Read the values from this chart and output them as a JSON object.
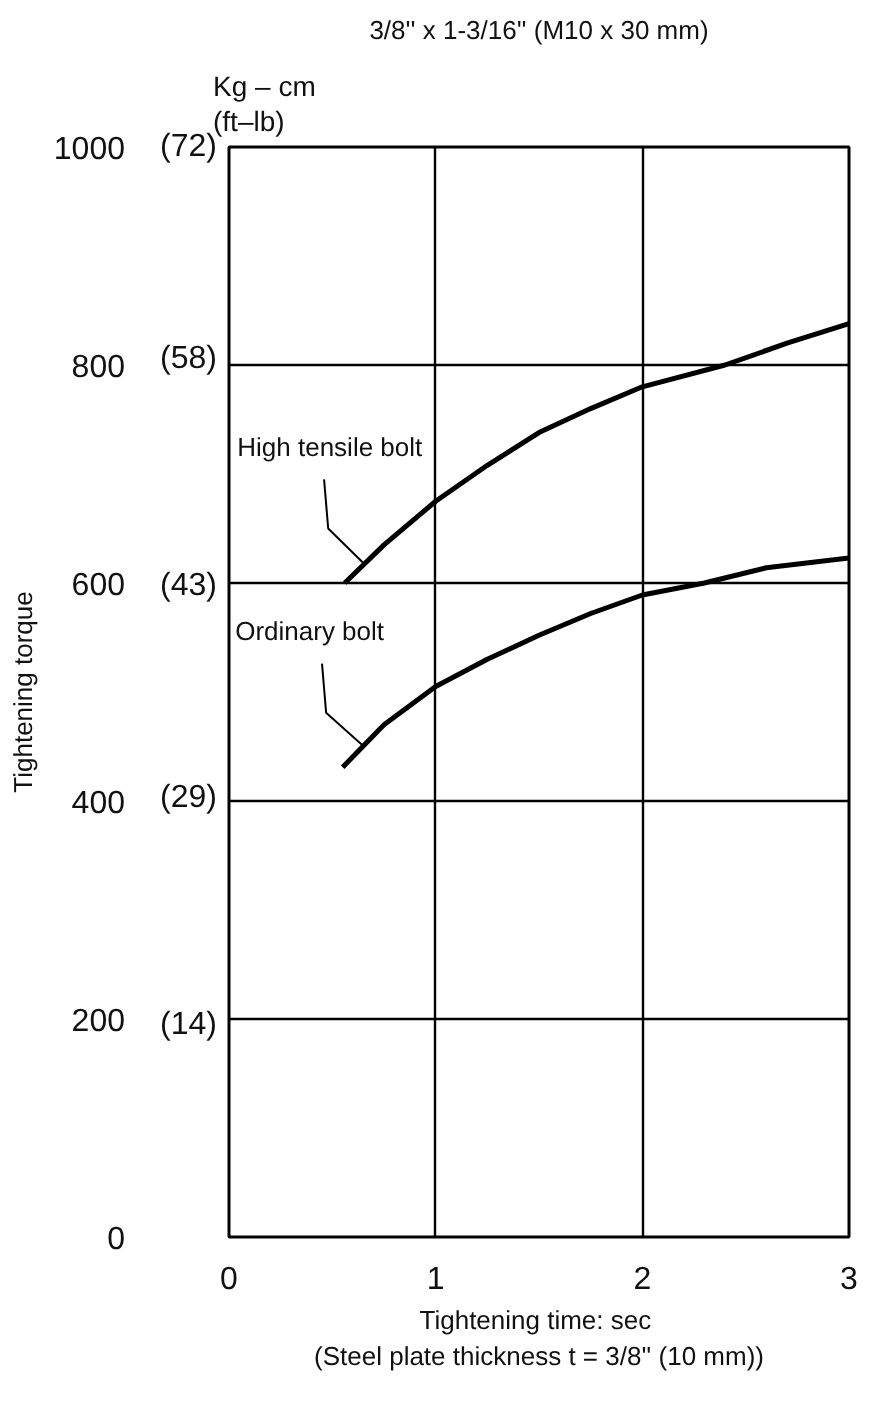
{
  "chart_data": {
    "type": "line",
    "title": "3/8'' x 1-3/16'' (M10 x 30 mm)",
    "xlabel": "Tightening time:  sec\n(Steel plate thickness t = 3/8'' (10 mm))",
    "ylabel": "Tightening torque",
    "annotations": [
      "Kg – cm\n(ft–lb)"
    ],
    "xlim": [
      0,
      3
    ],
    "ylim": [
      0,
      1000
    ],
    "xticks": [
      0,
      1,
      2,
      3
    ],
    "yticks": [
      0,
      200,
      400,
      600,
      800,
      1000
    ],
    "y2lim": [
      0,
      72
    ],
    "y2ticks": [
      {
        "value": 14,
        "label": "(14)"
      },
      {
        "value": 29,
        "label": "(29)"
      },
      {
        "value": 43,
        "label": "(43)"
      },
      {
        "value": 58,
        "label": "(58)"
      },
      {
        "value": 72,
        "label": "(72)"
      }
    ],
    "grid": true,
    "legend": false,
    "marker": "none",
    "line_style": "solid",
    "series": [
      {
        "name": "High tensile bolt",
        "color": "#000000",
        "x": [
          0.56,
          0.75,
          1,
          1.25,
          1.5,
          1.75,
          2,
          2.4,
          2.7,
          3
        ],
        "values": [
          600,
          635,
          675,
          708,
          738,
          760,
          780,
          800,
          820,
          838
        ]
      },
      {
        "name": "Ordinary bolt",
        "color": "#000000",
        "x": [
          0.55,
          0.75,
          1,
          1.25,
          1.5,
          1.75,
          2,
          2.3,
          2.6,
          3
        ],
        "values": [
          431,
          470,
          505,
          530,
          552,
          572,
          589,
          600,
          614,
          623
        ]
      }
    ]
  }
}
